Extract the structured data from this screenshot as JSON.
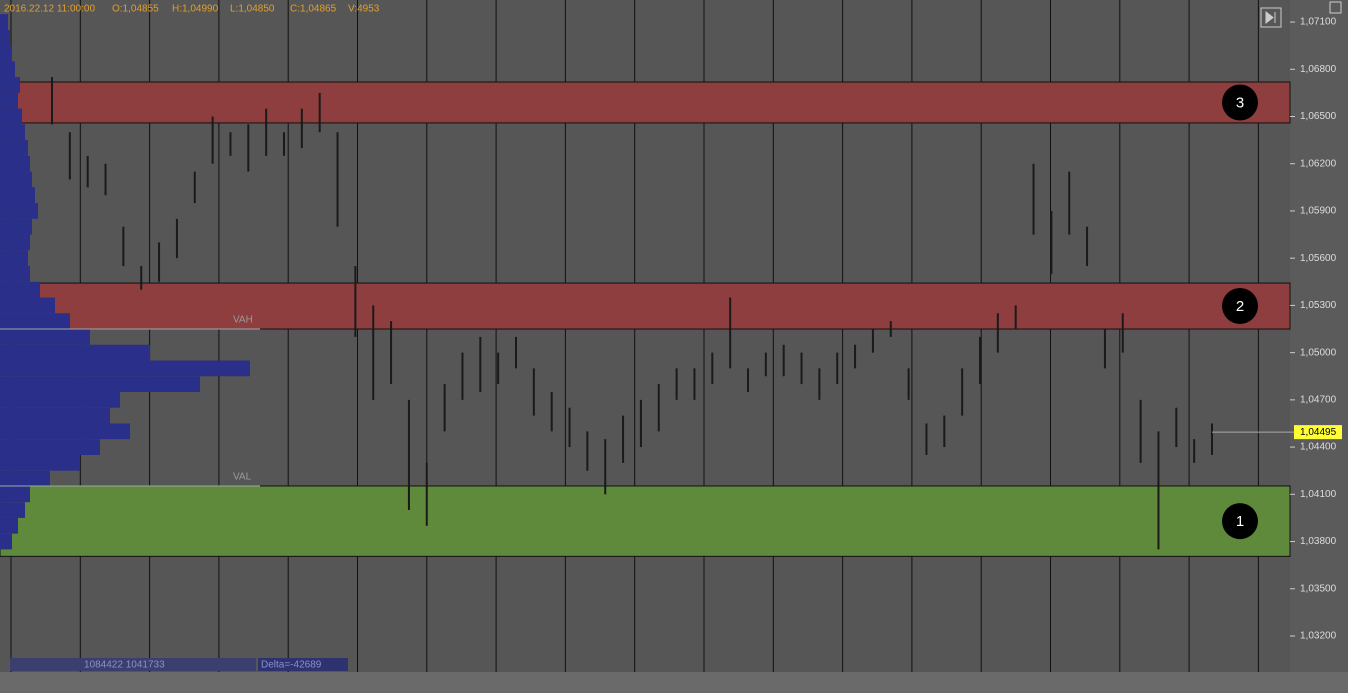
{
  "header": {
    "time": "2016.22.12 11:00:00",
    "open": "O:1,04855",
    "high": "H:1,04990",
    "low": "L:1,04850",
    "close": "C:1,04865",
    "volume": "V:4953"
  },
  "footer": {
    "range": "1084422 1041733",
    "delta": "Delta=-42689"
  },
  "chart_data": {
    "type": "ohlc",
    "ylim": [
      1.02984,
      1.0724
    ],
    "yticks": [
      {
        "value": 1.071,
        "label": "1,07100"
      },
      {
        "value": 1.068,
        "label": "1,06800"
      },
      {
        "value": 1.065,
        "label": "1,06500"
      },
      {
        "value": 1.062,
        "label": "1,06200"
      },
      {
        "value": 1.059,
        "label": "1,05900"
      },
      {
        "value": 1.056,
        "label": "1,05600"
      },
      {
        "value": 1.053,
        "label": "1,05300"
      },
      {
        "value": 1.05,
        "label": "1,05000"
      },
      {
        "value": 1.047,
        "label": "1,04700"
      },
      {
        "value": 1.044,
        "label": "1,04400"
      },
      {
        "value": 1.041,
        "label": "1,04100"
      },
      {
        "value": 1.038,
        "label": "1,03800"
      },
      {
        "value": 1.035,
        "label": "1,03500"
      },
      {
        "value": 1.032,
        "label": "1,03200"
      }
    ],
    "high": [
      1.0675,
      1.064,
      1.0625,
      1.062,
      1.058,
      1.0555,
      1.057,
      1.0585,
      1.0615,
      1.065,
      1.064,
      1.0645,
      1.0655,
      1.064,
      1.0655,
      1.0665,
      1.064,
      1.0555,
      1.053,
      1.052,
      1.047,
      1.043,
      1.048,
      1.05,
      1.051,
      1.05,
      1.051,
      1.049,
      1.0475,
      1.0465,
      1.045,
      1.0445,
      1.046,
      1.047,
      1.048,
      1.049,
      1.049,
      1.05,
      1.0535,
      1.049,
      1.05,
      1.0505,
      1.05,
      1.049,
      1.05,
      1.0505,
      1.0515,
      1.052,
      1.049,
      1.0455,
      1.046,
      1.049,
      1.051,
      1.0525,
      1.053,
      1.062,
      1.059,
      1.0615,
      1.058,
      1.0515,
      1.0525,
      1.047,
      1.045,
      1.0465,
      1.0445,
      1.0455
    ],
    "low": [
      1.0645,
      1.061,
      1.0605,
      1.06,
      1.0555,
      1.054,
      1.0545,
      1.056,
      1.0595,
      1.062,
      1.0625,
      1.0615,
      1.0625,
      1.0625,
      1.063,
      1.064,
      1.058,
      1.051,
      1.047,
      1.048,
      1.04,
      1.039,
      1.045,
      1.047,
      1.0475,
      1.048,
      1.049,
      1.046,
      1.045,
      1.044,
      1.0425,
      1.041,
      1.043,
      1.044,
      1.045,
      1.047,
      1.047,
      1.048,
      1.049,
      1.0475,
      1.0485,
      1.0485,
      1.048,
      1.047,
      1.048,
      1.049,
      1.05,
      1.051,
      1.047,
      1.0435,
      1.044,
      1.046,
      1.048,
      1.05,
      1.0515,
      1.0575,
      1.055,
      1.0575,
      1.0555,
      1.049,
      1.05,
      1.043,
      1.0375,
      1.044,
      1.043,
      1.0435
    ],
    "last_price": {
      "value": 1.04495,
      "label": "1,04495"
    },
    "zones": [
      {
        "label": "3",
        "top": 1.06719,
        "bottom": 1.06459,
        "color": "#8e3e3e"
      },
      {
        "label": "2",
        "top": 1.05442,
        "bottom": 1.0515,
        "color": "#8e3e3e"
      },
      {
        "label": "1",
        "top": 1.04153,
        "bottom": 1.03706,
        "color": "#5f8a3c"
      }
    ],
    "value_area": [
      {
        "label": "VAH",
        "value": 1.0515
      },
      {
        "label": "VAL",
        "value": 1.04153
      }
    ],
    "profile": {
      "xlim": [
        0,
        260
      ],
      "color": "#2a2f8a",
      "levels": [
        1.071,
        1.07,
        1.069,
        1.068,
        1.067,
        1.066,
        1.065,
        1.064,
        1.063,
        1.062,
        1.061,
        1.06,
        1.059,
        1.058,
        1.057,
        1.056,
        1.055,
        1.054,
        1.053,
        1.052,
        1.051,
        1.05,
        1.049,
        1.048,
        1.047,
        1.046,
        1.045,
        1.044,
        1.043,
        1.042,
        1.041,
        1.04,
        1.039,
        1.038
      ],
      "volumes": [
        8,
        10,
        12,
        15,
        20,
        18,
        22,
        25,
        28,
        30,
        32,
        35,
        38,
        32,
        30,
        28,
        30,
        40,
        55,
        70,
        90,
        150,
        250,
        200,
        120,
        110,
        130,
        100,
        80,
        50,
        30,
        25,
        18,
        12
      ]
    }
  }
}
